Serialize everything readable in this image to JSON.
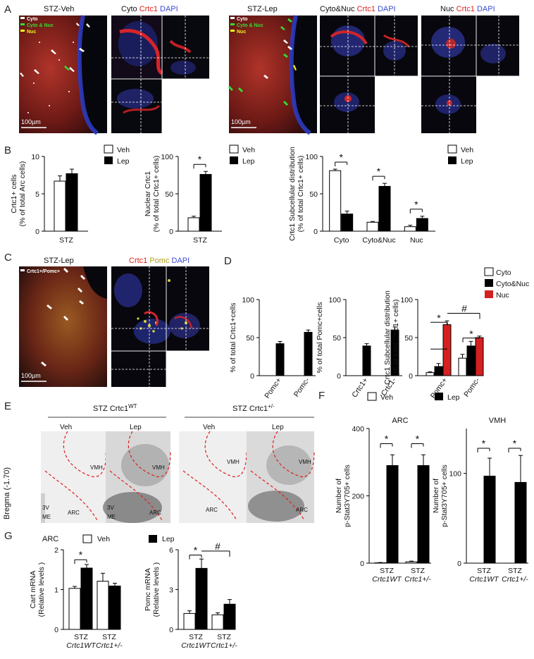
{
  "colors": {
    "veh": "#ffffff",
    "lep": "#000000",
    "nuc": "#d42020",
    "micro_bg": "#0b0b12",
    "tissue_red": "#c42a22",
    "dapi": "#2834b8",
    "stain_sheet": "#efefef"
  },
  "panel_A": {
    "letter": "A",
    "veh": {
      "title": "STZ-Veh",
      "legend": [
        "Cyto",
        "Cyto & Nuc",
        "Nuc"
      ],
      "scale": "100µm",
      "inset_title": {
        "prefix": "Cyto",
        "red": "Crtc1",
        "blue": "DAPI"
      }
    },
    "lep": {
      "title": "STZ-Lep",
      "legend": [
        "Cyto",
        "Cyto & Nuc",
        "Nuc"
      ],
      "scale": "100µm",
      "inset1_title": {
        "prefix": "Cyto&Nuc",
        "red": "Crtc1",
        "blue": "DAPI"
      },
      "inset2_title": {
        "prefix": "Nuc",
        "red": "Crtc1",
        "blue": "DAPI"
      }
    },
    "legend_colors": [
      "#ffffff",
      "#33dd33",
      "#f0f020"
    ]
  },
  "panel_B": {
    "letter": "B",
    "legend": [
      "Veh",
      "Lep"
    ]
  },
  "panel_C": {
    "letter": "C",
    "title": "STZ-Lep",
    "legend": "Crtc1+/Pomc+",
    "scale": "100µm",
    "inset_title": {
      "red": "Crtc1",
      "yellow": "Pomc",
      "blue": "DAPI"
    }
  },
  "panel_D": {
    "letter": "D",
    "legend": [
      "Cyto",
      "Cyto&Nuc",
      "Nuc"
    ]
  },
  "panel_E": {
    "letter": "E",
    "bregma": "Bregma (-1.70)",
    "groups": [
      {
        "title": "STZ Crtc1",
        "sup": "WT"
      },
      {
        "title": "STZ Crtc1",
        "sup": "+/-"
      }
    ],
    "sections": [
      "Veh",
      "Lep",
      "Veh",
      "Lep"
    ],
    "regions": {
      "vmh": "VMH",
      "arc": "ARC",
      "v3": "3V",
      "me": "ME"
    }
  },
  "panel_F": {
    "letter": "F",
    "legend": [
      "Veh",
      "Lep"
    ]
  },
  "panel_G": {
    "letter": "G",
    "region": "ARC",
    "legend": [
      "Veh",
      "Lep"
    ]
  },
  "chart_data": [
    {
      "id": "B1",
      "type": "bar",
      "categories": [
        "STZ"
      ],
      "series": [
        {
          "name": "Veh",
          "values": [
            6.7
          ]
        },
        {
          "name": "Lep",
          "values": [
            7.7
          ]
        }
      ],
      "errors": [
        [
          0.7
        ],
        [
          0.6
        ]
      ],
      "ylim": [
        0,
        10
      ],
      "yticks": [
        0,
        5,
        10
      ],
      "ylabel": [
        "Crtc1+ cells",
        "(% of total Arc cells)"
      ],
      "sig": []
    },
    {
      "id": "B2",
      "type": "bar",
      "categories": [
        "STZ"
      ],
      "series": [
        {
          "name": "Veh",
          "values": [
            18
          ]
        },
        {
          "name": "Lep",
          "values": [
            76
          ]
        }
      ],
      "errors": [
        [
          2
        ],
        [
          4
        ]
      ],
      "ylim": [
        0,
        100
      ],
      "yticks": [
        0,
        50,
        100
      ],
      "ylabel": [
        "Nuclear Crtc1",
        "(% of total Crtc1+ cells)"
      ],
      "sig": [
        {
          "cat": 0,
          "label": "*"
        }
      ]
    },
    {
      "id": "B3",
      "type": "bar",
      "categories": [
        "Cyto",
        "Cyto&Nuc",
        "Nuc"
      ],
      "series": [
        {
          "name": "Veh",
          "values": [
            81,
            12,
            6
          ]
        },
        {
          "name": "Lep",
          "values": [
            23,
            60,
            17
          ]
        }
      ],
      "errors": [
        [
          2,
          1,
          2
        ],
        [
          4,
          4,
          3
        ]
      ],
      "ylim": [
        0,
        100
      ],
      "yticks": [
        0,
        50,
        100
      ],
      "ylabel": [
        "Crtc1 Subcellular distribution",
        "(% of total Crtc1+ cells)"
      ],
      "sig": [
        {
          "cat": 0,
          "label": "*"
        },
        {
          "cat": 1,
          "label": "*"
        },
        {
          "cat": 2,
          "label": "*"
        }
      ]
    },
    {
      "id": "D1",
      "type": "bar",
      "categories": [
        "Pomc+",
        "Pomc-"
      ],
      "series": [
        {
          "values": [
            42,
            57
          ]
        }
      ],
      "errors": [
        [
          3,
          3
        ]
      ],
      "ylim": [
        0,
        100
      ],
      "yticks": [
        0,
        50,
        100
      ],
      "ylabel": [
        "% of total Crtc1+cells"
      ]
    },
    {
      "id": "D2",
      "type": "bar",
      "categories": [
        "Crtc1+",
        "Crtc1-"
      ],
      "series": [
        {
          "values": [
            39,
            60
          ]
        }
      ],
      "errors": [
        [
          3,
          4
        ]
      ],
      "ylim": [
        0,
        100
      ],
      "yticks": [
        0,
        50,
        100
      ],
      "ylabel": [
        "% of total Pomc+cells"
      ]
    },
    {
      "id": "D3",
      "type": "bar",
      "categories": [
        "Pomc+",
        "Pomc-"
      ],
      "series": [
        {
          "name": "Cyto",
          "values": [
            4,
            23
          ]
        },
        {
          "name": "Cyto&Nuc",
          "values": [
            12,
            39
          ]
        },
        {
          "name": "Nuc",
          "values": [
            67,
            50
          ]
        }
      ],
      "errors": [
        [
          1,
          5
        ],
        [
          4,
          6
        ],
        [
          5,
          2
        ]
      ],
      "ylim": [
        0,
        100
      ],
      "yticks": [
        0,
        50,
        100
      ],
      "ylabel": [
        "Crtc1 Subcellular distribution",
        "(% of total Crtc1+ cells)"
      ]
    },
    {
      "id": "F1",
      "type": "bar",
      "title": "ARC",
      "categories": [
        "STZ Crtc1WT",
        "STZ Crtc1+/-"
      ],
      "series": [
        {
          "name": "Veh",
          "values": [
            1,
            4
          ]
        },
        {
          "name": "Lep",
          "values": [
            290,
            290
          ]
        }
      ],
      "errors": [
        [
          1,
          2
        ],
        [
          32,
          32
        ]
      ],
      "ylim": [
        0,
        400
      ],
      "yticks": [
        0,
        200,
        400
      ],
      "ylabel": [
        "Number of",
        "p-Stat3Y705+ cells"
      ]
    },
    {
      "id": "F2",
      "type": "bar",
      "title": "VMH",
      "categories": [
        "STZ Crtc1WT",
        "STZ Crtc1+/-"
      ],
      "series": [
        {
          "name": "Veh",
          "values": [
            0,
            0
          ]
        },
        {
          "name": "Lep",
          "values": [
            97,
            90
          ]
        }
      ],
      "errors": [
        [
          0,
          0
        ],
        [
          20,
          30
        ]
      ],
      "ylim": [
        0,
        150
      ],
      "yticks": [
        0,
        100
      ],
      "ylabel": [
        "Number of",
        "p-Stat3Y705+ cells"
      ]
    },
    {
      "id": "G1",
      "type": "bar",
      "categories": [
        "STZ Crtc1WT",
        "STZ Crtc1+/-"
      ],
      "series": [
        {
          "name": "Veh",
          "values": [
            1.03,
            1.21
          ]
        },
        {
          "name": "Lep",
          "values": [
            1.54,
            1.09
          ]
        }
      ],
      "errors": [
        [
          0.05,
          0.2
        ],
        [
          0.09,
          0.07
        ]
      ],
      "ylim": [
        0,
        2
      ],
      "yticks": [
        0,
        1,
        2
      ],
      "ylabel": [
        "Cart mRNA",
        "(Relative levels )"
      ]
    },
    {
      "id": "G2",
      "type": "bar",
      "categories": [
        "STZ Crtc1WT",
        "STZ Crtc1+/-"
      ],
      "series": [
        {
          "name": "Veh",
          "values": [
            1.2,
            1.1
          ]
        },
        {
          "name": "Lep",
          "values": [
            4.6,
            1.9
          ]
        }
      ],
      "errors": [
        [
          0.2,
          0.15
        ],
        [
          0.7,
          0.35
        ]
      ],
      "ylim": [
        0,
        6
      ],
      "yticks": [
        0,
        3,
        6
      ],
      "ylabel": [
        "Pomc mRNA",
        "(Relative levels )"
      ]
    }
  ]
}
